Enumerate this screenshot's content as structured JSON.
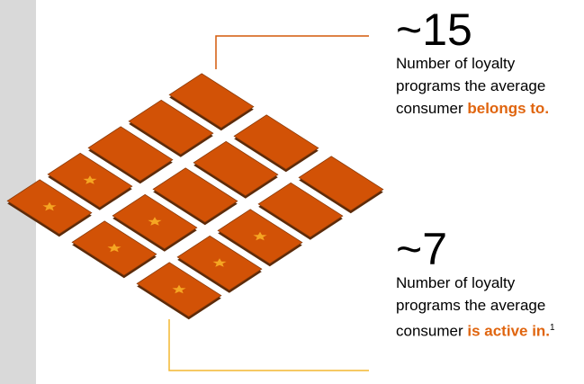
{
  "stats": [
    {
      "figure": "~15",
      "text": "Number of loyalty programs the average consumer",
      "highlight": "belongs to."
    },
    {
      "figure": "~7",
      "text": "Number of loyalty programs the average consumer",
      "highlight": "is active in.",
      "footnote": "1"
    }
  ]
}
